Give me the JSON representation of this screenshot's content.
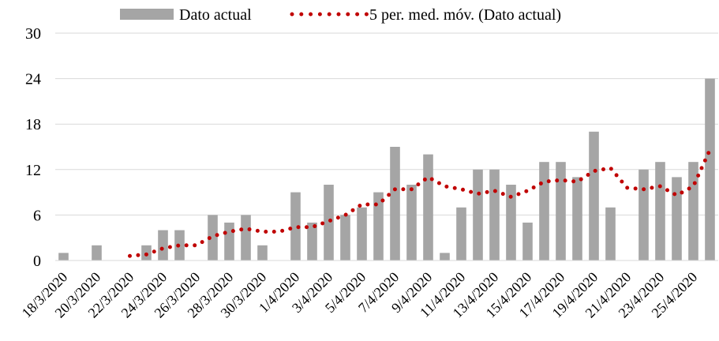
{
  "chart_data": {
    "type": "bar",
    "categories": [
      "18/3/2020",
      null,
      "20/3/2020",
      null,
      "22/3/2020",
      null,
      "24/3/2020",
      null,
      "26/3/2020",
      null,
      "28/3/2020",
      null,
      "30/3/2020",
      null,
      "1/4/2020",
      null,
      "3/4/2020",
      null,
      "5/4/2020",
      null,
      "7/4/2020",
      null,
      "9/4/2020",
      null,
      "11/4/2020",
      null,
      "13/4/2020",
      null,
      "15/4/2020",
      null,
      "17/4/2020",
      null,
      "19/4/2020",
      null,
      "21/4/2020",
      null,
      "23/4/2020",
      null,
      "25/4/2020",
      null
    ],
    "series": [
      {
        "name": "Dato actual",
        "type": "bar",
        "color": "#a5a5a5",
        "values": [
          1,
          0,
          2,
          0,
          0,
          2,
          4,
          4,
          0,
          6,
          5,
          6,
          2,
          0,
          9,
          5,
          10,
          6,
          7,
          9,
          15,
          10,
          14,
          1,
          7,
          12,
          12,
          10,
          5,
          13,
          13,
          11,
          17,
          7,
          0,
          12,
          13,
          11,
          13,
          24
        ]
      },
      {
        "name": "5 per. med. móv. (Dato actual)",
        "type": "line",
        "color": "#c00000",
        "values": [
          null,
          null,
          null,
          null,
          0.6,
          0.8,
          1.6,
          2,
          2,
          3.2,
          3.8,
          4.2,
          3.8,
          3.8,
          4.4,
          4.4,
          5.2,
          6,
          7.4,
          7.4,
          9.4,
          9.4,
          11,
          9.8,
          9.4,
          8.8,
          9.2,
          8.4,
          9.2,
          10.4,
          10.6,
          10.4,
          11.8,
          12.2,
          9.6,
          9.4,
          9.8,
          8.6,
          9.8,
          14.6
        ]
      }
    ],
    "ylim": [
      0,
      30
    ],
    "yticks": [
      0,
      6,
      12,
      18,
      24,
      30
    ],
    "grid": true,
    "legend": "top"
  }
}
